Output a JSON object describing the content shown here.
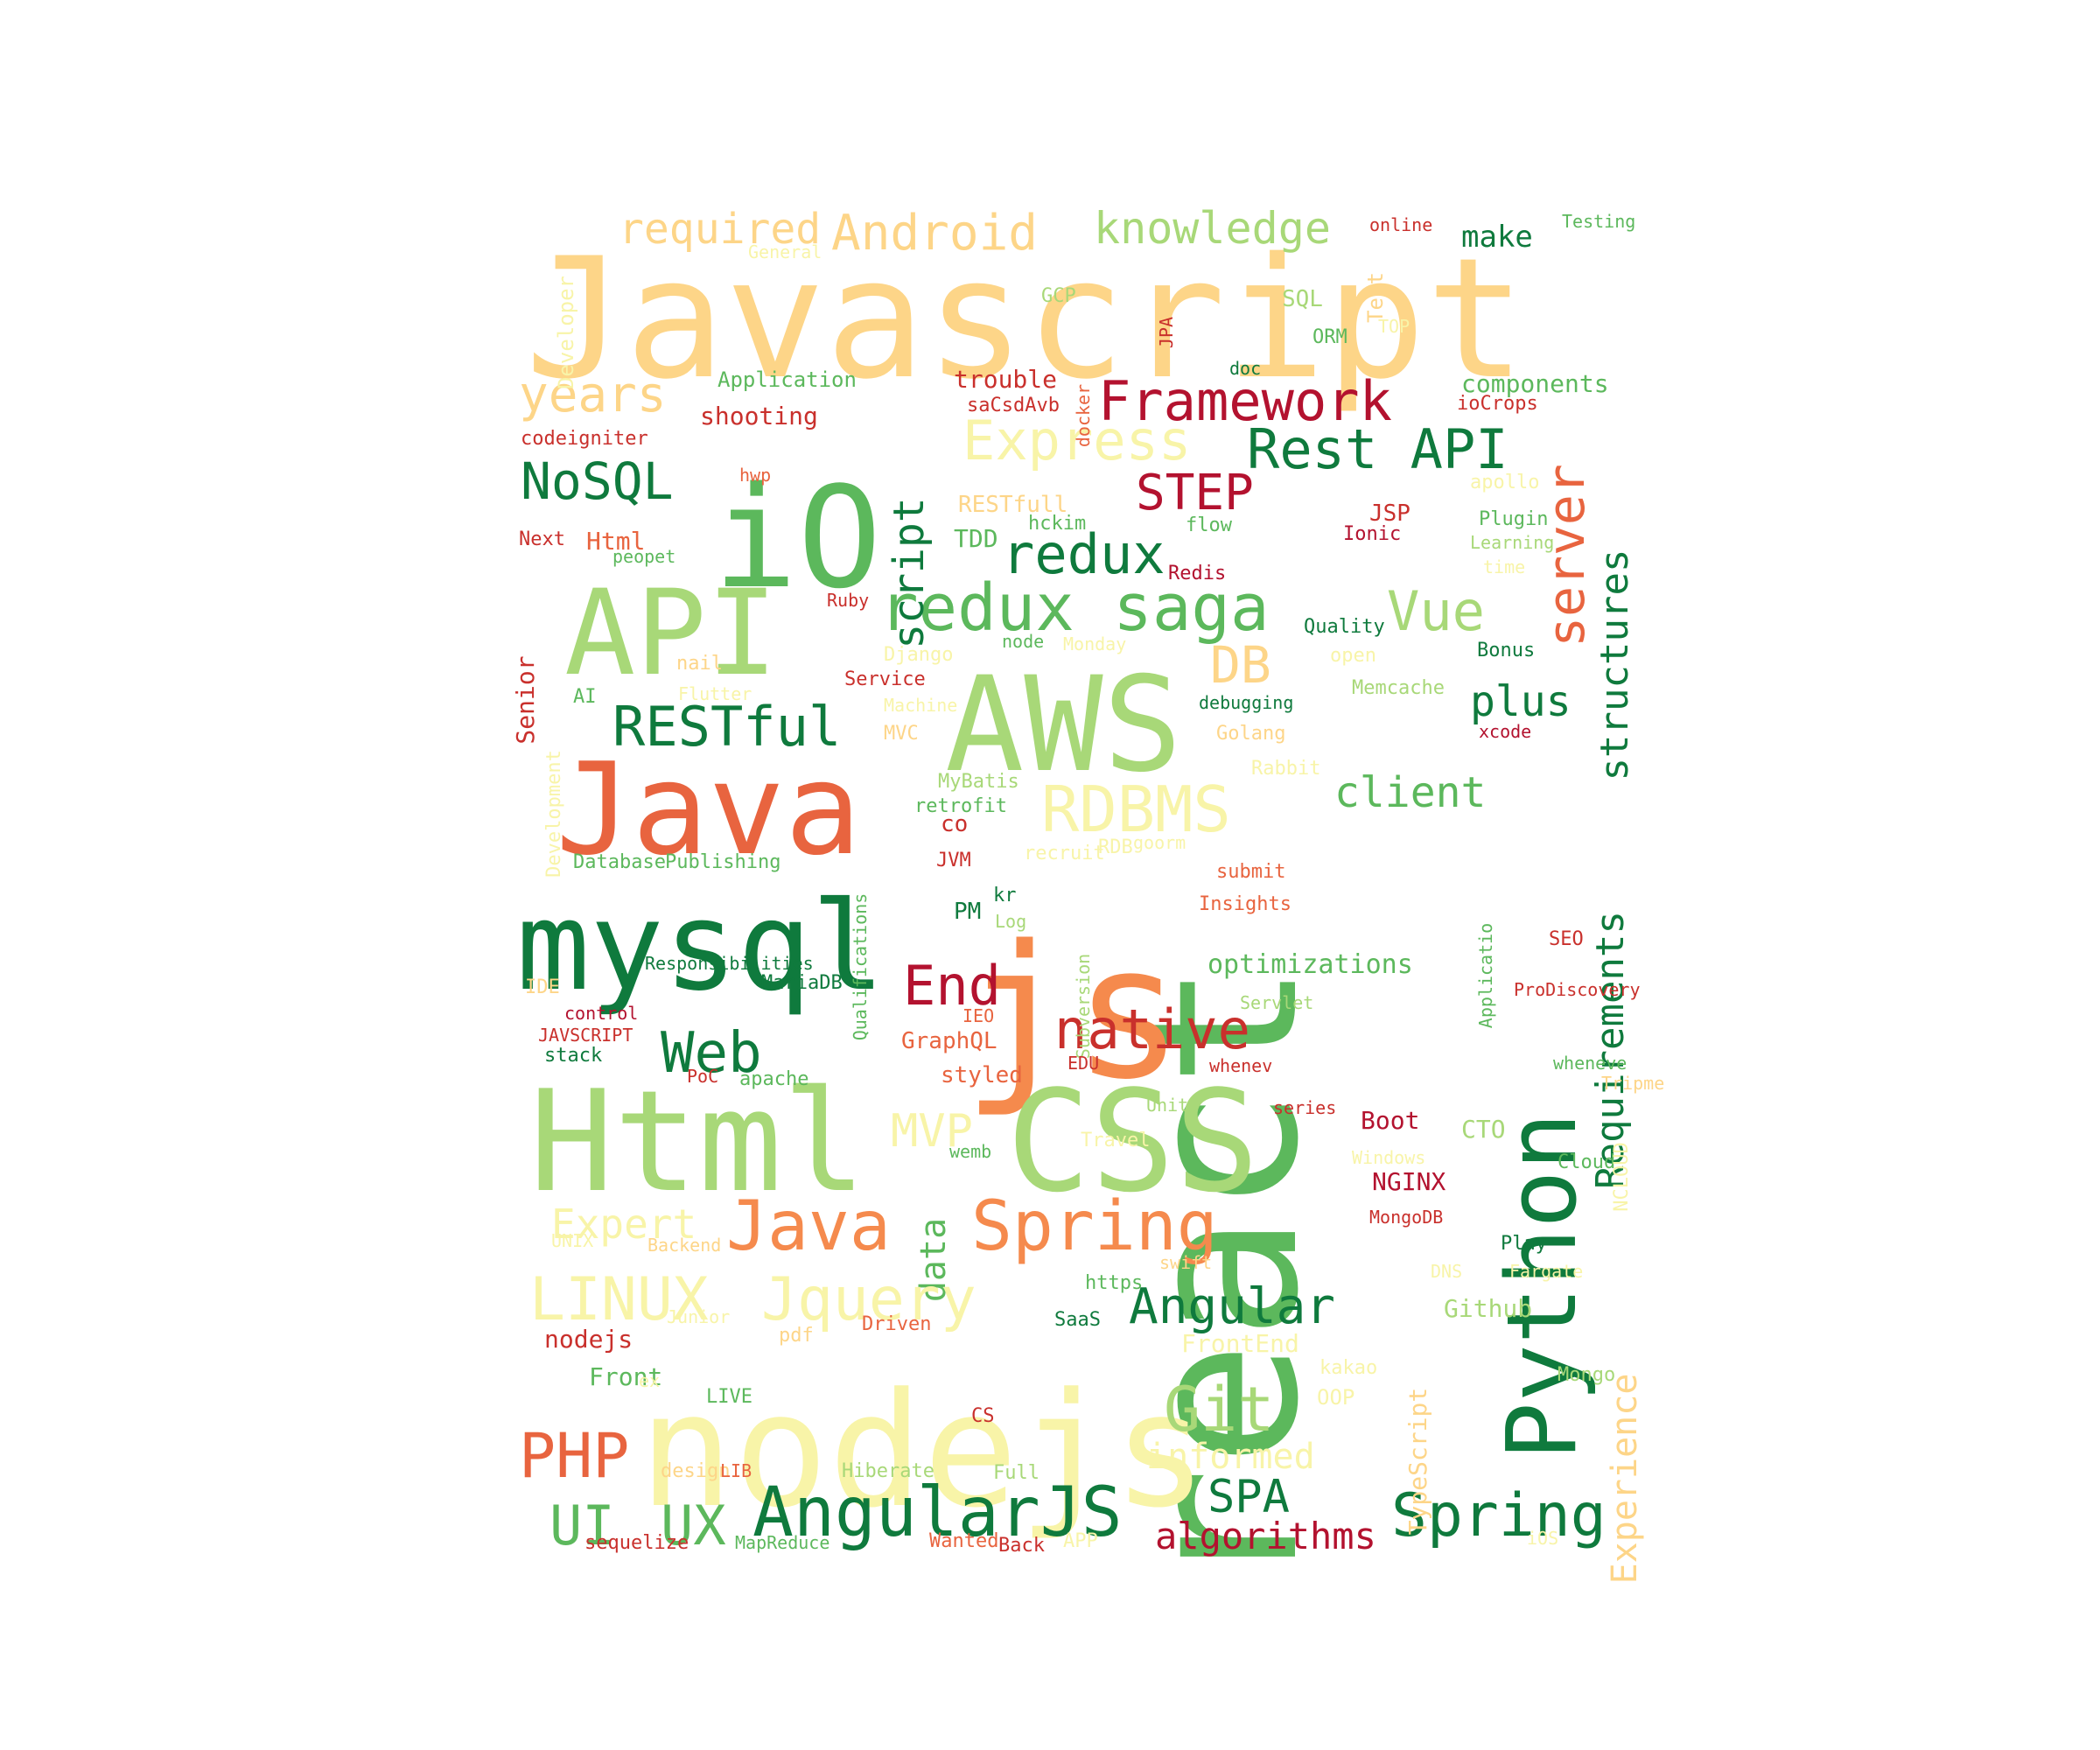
{
  "palette": {
    "dark_green": "#0f7a3d",
    "green": "#5cb85c",
    "light_green": "#a8d878",
    "pale_yellow": "#f8f4a8",
    "pale_orange": "#fdd588",
    "orange": "#f58a4d",
    "red_orange": "#e8643f",
    "red": "#c9302c",
    "crimson": "#b3122f"
  },
  "words": [
    {
      "text": "Javascript",
      "color": "pale_orange"
    },
    {
      "text": "react",
      "color": "green"
    },
    {
      "text": "nodejs",
      "color": "pale_yellow"
    },
    {
      "text": "js",
      "color": "orange"
    },
    {
      "text": "Html",
      "color": "light_green"
    },
    {
      "text": "CSS",
      "color": "light_green"
    },
    {
      "text": "mysql",
      "color": "dark_green"
    },
    {
      "text": "Java",
      "color": "red_orange"
    },
    {
      "text": "AWS",
      "color": "light_green"
    },
    {
      "text": "API",
      "color": "light_green"
    },
    {
      "text": "iO",
      "color": "green"
    },
    {
      "text": "Python",
      "color": "dark_green"
    },
    {
      "text": "redux saga",
      "color": "green"
    },
    {
      "text": "Framework",
      "color": "crimson"
    },
    {
      "text": "Express",
      "color": "pale_yellow"
    },
    {
      "text": "Rest API",
      "color": "dark_green"
    },
    {
      "text": "Android",
      "color": "pale_orange"
    },
    {
      "text": "knowledge",
      "color": "light_green"
    },
    {
      "text": "required",
      "color": "pale_orange"
    },
    {
      "text": "years",
      "color": "pale_orange"
    },
    {
      "text": "NoSQL",
      "color": "dark_green"
    },
    {
      "text": "redux",
      "color": "dark_green"
    },
    {
      "text": "STEP",
      "color": "crimson"
    },
    {
      "text": "script",
      "color": "dark_green"
    },
    {
      "text": "server",
      "color": "red_orange"
    },
    {
      "text": "structures",
      "color": "dark_green"
    },
    {
      "text": "RDBMS",
      "color": "pale_yellow"
    },
    {
      "text": "RESTful",
      "color": "dark_green"
    },
    {
      "text": "Vue",
      "color": "light_green"
    },
    {
      "text": "DB",
      "color": "pale_orange"
    },
    {
      "text": "plus",
      "color": "dark_green"
    },
    {
      "text": "client",
      "color": "green"
    },
    {
      "text": "Requirements",
      "color": "dark_green"
    },
    {
      "text": "Web",
      "color": "dark_green"
    },
    {
      "text": "End",
      "color": "crimson"
    },
    {
      "text": "native",
      "color": "red"
    },
    {
      "text": "Spring",
      "color": "orange"
    },
    {
      "text": "Java",
      "color": "orange"
    },
    {
      "text": "MVP",
      "color": "pale_yellow"
    },
    {
      "text": "data",
      "color": "green"
    },
    {
      "text": "Expert",
      "color": "pale_yellow"
    },
    {
      "text": "LINUX",
      "color": "pale_yellow"
    },
    {
      "text": "Jquery",
      "color": "pale_yellow"
    },
    {
      "text": "Angular",
      "color": "dark_green"
    },
    {
      "text": "Git",
      "color": "light_green"
    },
    {
      "text": "PHP",
      "color": "red_orange"
    },
    {
      "text": "AngularJS",
      "color": "dark_green"
    },
    {
      "text": "Spring",
      "color": "dark_green"
    },
    {
      "text": "SPA",
      "color": "dark_green"
    },
    {
      "text": "UI",
      "color": "green"
    },
    {
      "text": "UX",
      "color": "green"
    },
    {
      "text": "algorithms",
      "color": "crimson"
    },
    {
      "text": "informed",
      "color": "pale_yellow"
    },
    {
      "text": "Experience",
      "color": "pale_orange"
    },
    {
      "text": "TypeScript",
      "color": "pale_orange"
    },
    {
      "text": "optimizations",
      "color": "green"
    },
    {
      "text": "make",
      "color": "dark_green"
    },
    {
      "text": "components",
      "color": "green"
    },
    {
      "text": "trouble",
      "color": "red"
    },
    {
      "text": "shooting",
      "color": "red"
    },
    {
      "text": "Application",
      "color": "green"
    },
    {
      "text": "codeigniter",
      "color": "red"
    },
    {
      "text": "Developer",
      "color": "pale_yellow"
    },
    {
      "text": "General",
      "color": "pale_yellow"
    },
    {
      "text": "GCP",
      "color": "light_green"
    },
    {
      "text": "SQL",
      "color": "light_green"
    },
    {
      "text": "JPA",
      "color": "red"
    },
    {
      "text": "online",
      "color": "red"
    },
    {
      "text": "Test",
      "color": "pale_orange"
    },
    {
      "text": "TOP",
      "color": "pale_yellow"
    },
    {
      "text": "Testing",
      "color": "green"
    },
    {
      "text": "ORM",
      "color": "green"
    },
    {
      "text": "doc",
      "color": "dark_green"
    },
    {
      "text": "docker",
      "color": "red_orange"
    },
    {
      "text": "saCsdAvb",
      "color": "red"
    },
    {
      "text": "ioCrops",
      "color": "red"
    },
    {
      "text": "apollo",
      "color": "pale_yellow"
    },
    {
      "text": "hwp",
      "color": "red_orange"
    },
    {
      "text": "RESTfull",
      "color": "pale_orange"
    },
    {
      "text": "hckim",
      "color": "green"
    },
    {
      "text": "flow",
      "color": "green"
    },
    {
      "text": "JSP",
      "color": "red"
    },
    {
      "text": "Ionic",
      "color": "crimson"
    },
    {
      "text": "Plugin",
      "color": "green"
    },
    {
      "text": "Learning",
      "color": "light_green"
    },
    {
      "text": "time",
      "color": "pale_yellow"
    },
    {
      "text": "Next",
      "color": "red"
    },
    {
      "text": "Html",
      "color": "red_orange"
    },
    {
      "text": "peopet",
      "color": "green"
    },
    {
      "text": "TDD",
      "color": "green"
    },
    {
      "text": "Redis",
      "color": "crimson"
    },
    {
      "text": "Ruby",
      "color": "red"
    },
    {
      "text": "node",
      "color": "green"
    },
    {
      "text": "Monday",
      "color": "pale_yellow"
    },
    {
      "text": "Quality",
      "color": "dark_green"
    },
    {
      "text": "open",
      "color": "pale_yellow"
    },
    {
      "text": "Bonus",
      "color": "dark_green"
    },
    {
      "text": "Senior",
      "color": "red"
    },
    {
      "text": "nail",
      "color": "pale_orange"
    },
    {
      "text": "Django",
      "color": "pale_yellow"
    },
    {
      "text": "Service",
      "color": "red"
    },
    {
      "text": "Flutter",
      "color": "pale_yellow"
    },
    {
      "text": "AI",
      "color": "green"
    },
    {
      "text": "Machine",
      "color": "pale_yellow"
    },
    {
      "text": "debugging",
      "color": "dark_green"
    },
    {
      "text": "Memcache",
      "color": "light_green"
    },
    {
      "text": "Development",
      "color": "pale_yellow"
    },
    {
      "text": "MVC",
      "color": "pale_orange"
    },
    {
      "text": "Golang",
      "color": "pale_orange"
    },
    {
      "text": "xcode",
      "color": "crimson"
    },
    {
      "text": "Rabbit",
      "color": "pale_yellow"
    },
    {
      "text": "MyBatis",
      "color": "light_green"
    },
    {
      "text": "retrofit",
      "color": "green"
    },
    {
      "text": "co",
      "color": "red"
    },
    {
      "text": "recruit",
      "color": "pale_yellow"
    },
    {
      "text": "RDB",
      "color": "pale_yellow"
    },
    {
      "text": "goorm",
      "color": "pale_yellow"
    },
    {
      "text": "Database",
      "color": "green"
    },
    {
      "text": "Publishing",
      "color": "green"
    },
    {
      "text": "JVM",
      "color": "red"
    },
    {
      "text": "Qualifications",
      "color": "green"
    },
    {
      "text": "kr",
      "color": "dark_green"
    },
    {
      "text": "Log",
      "color": "light_green"
    },
    {
      "text": "PM",
      "color": "dark_green"
    },
    {
      "text": "submit",
      "color": "red_orange"
    },
    {
      "text": "Insights",
      "color": "red_orange"
    },
    {
      "text": "Subversion",
      "color": "light_green"
    },
    {
      "text": "Applicatio",
      "color": "green"
    },
    {
      "text": "SEO",
      "color": "red"
    },
    {
      "text": "Responsibilities",
      "color": "dark_green"
    },
    {
      "text": "MariaDB",
      "color": "dark_green"
    },
    {
      "text": "IDE",
      "color": "pale_orange"
    },
    {
      "text": "control",
      "color": "crimson"
    },
    {
      "text": "ProDiscovery",
      "color": "red"
    },
    {
      "text": "JAVSCRIPT",
      "color": "red"
    },
    {
      "text": "GraphQL",
      "color": "red_orange"
    },
    {
      "text": "IEO",
      "color": "red_orange"
    },
    {
      "text": "Servlet",
      "color": "light_green"
    },
    {
      "text": "stack",
      "color": "dark_green"
    },
    {
      "text": "EDU",
      "color": "red"
    },
    {
      "text": "whenev",
      "color": "red"
    },
    {
      "text": "wheneve",
      "color": "green"
    },
    {
      "text": "PoC",
      "color": "red"
    },
    {
      "text": "apache",
      "color": "green"
    },
    {
      "text": "styled",
      "color": "red_orange"
    },
    {
      "text": "Tripme",
      "color": "pale_orange"
    },
    {
      "text": "Unit",
      "color": "light_green"
    },
    {
      "text": "series",
      "color": "red"
    },
    {
      "text": "Boot",
      "color": "crimson"
    },
    {
      "text": "CTO",
      "color": "light_green"
    },
    {
      "text": "Travel",
      "color": "pale_yellow"
    },
    {
      "text": "wemb",
      "color": "green"
    },
    {
      "text": "Windows",
      "color": "pale_yellow"
    },
    {
      "text": "Cloud",
      "color": "green"
    },
    {
      "text": "NCLOUD",
      "color": "pale_yellow"
    },
    {
      "text": "NGINX",
      "color": "crimson"
    },
    {
      "text": "MongoDB",
      "color": "red"
    },
    {
      "text": "UNIX",
      "color": "pale_yellow"
    },
    {
      "text": "Backend",
      "color": "pale_orange"
    },
    {
      "text": "swift",
      "color": "pale_orange"
    },
    {
      "text": "Play",
      "color": "dark_green"
    },
    {
      "text": "https",
      "color": "green"
    },
    {
      "text": "DNS",
      "color": "pale_yellow"
    },
    {
      "text": "Fargate",
      "color": "pale_yellow"
    },
    {
      "text": "Github",
      "color": "light_green"
    },
    {
      "text": "Junior",
      "color": "pale_yellow"
    },
    {
      "text": "SaaS",
      "color": "dark_green"
    },
    {
      "text": "nodejs",
      "color": "red"
    },
    {
      "text": "pdf",
      "color": "pale_orange"
    },
    {
      "text": "Driven",
      "color": "red_orange"
    },
    {
      "text": "FrontEnd",
      "color": "pale_yellow"
    },
    {
      "text": "Front",
      "color": "green"
    },
    {
      "text": "ex",
      "color": "pale_yellow"
    },
    {
      "text": "kakao",
      "color": "pale_yellow"
    },
    {
      "text": "OOP",
      "color": "pale_yellow"
    },
    {
      "text": "Mongo",
      "color": "light_green"
    },
    {
      "text": "LIVE",
      "color": "green"
    },
    {
      "text": "CS",
      "color": "red"
    },
    {
      "text": "design",
      "color": "pale_orange"
    },
    {
      "text": "LIB",
      "color": "red_orange"
    },
    {
      "text": "Hiberate",
      "color": "light_green"
    },
    {
      "text": "Full",
      "color": "light_green"
    },
    {
      "text": "sequelize",
      "color": "red"
    },
    {
      "text": "MapReduce",
      "color": "green"
    },
    {
      "text": "Wanted",
      "color": "red_orange"
    },
    {
      "text": "Back",
      "color": "red"
    },
    {
      "text": "APP",
      "color": "pale_yellow"
    },
    {
      "text": "iOS",
      "color": "pale_yellow"
    }
  ]
}
